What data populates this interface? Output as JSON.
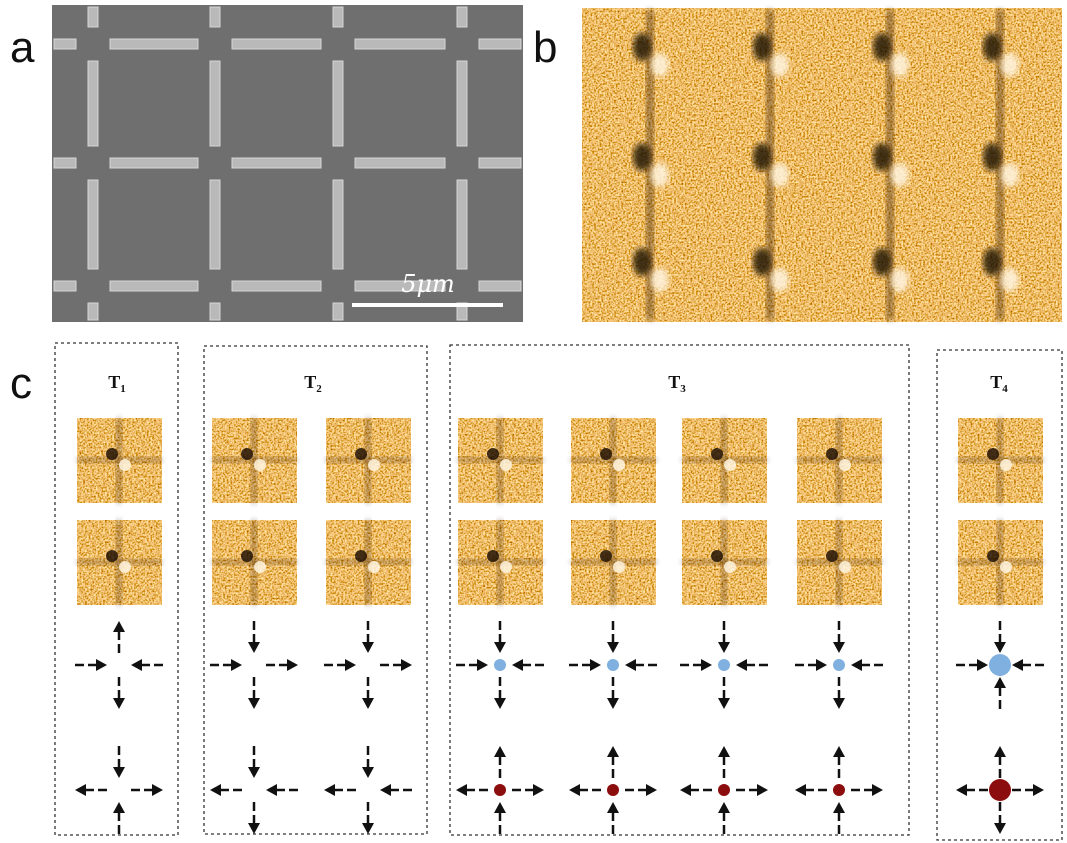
{
  "panels": {
    "a": {
      "label": "a",
      "scale_bar": "5μm"
    },
    "b": {
      "label": "b"
    },
    "c": {
      "label": "c",
      "groups": [
        {
          "name": "T",
          "index": "1"
        },
        {
          "name": "T",
          "index": "2"
        },
        {
          "name": "T",
          "index": "3"
        },
        {
          "name": "T",
          "index": "4"
        }
      ]
    }
  }
}
